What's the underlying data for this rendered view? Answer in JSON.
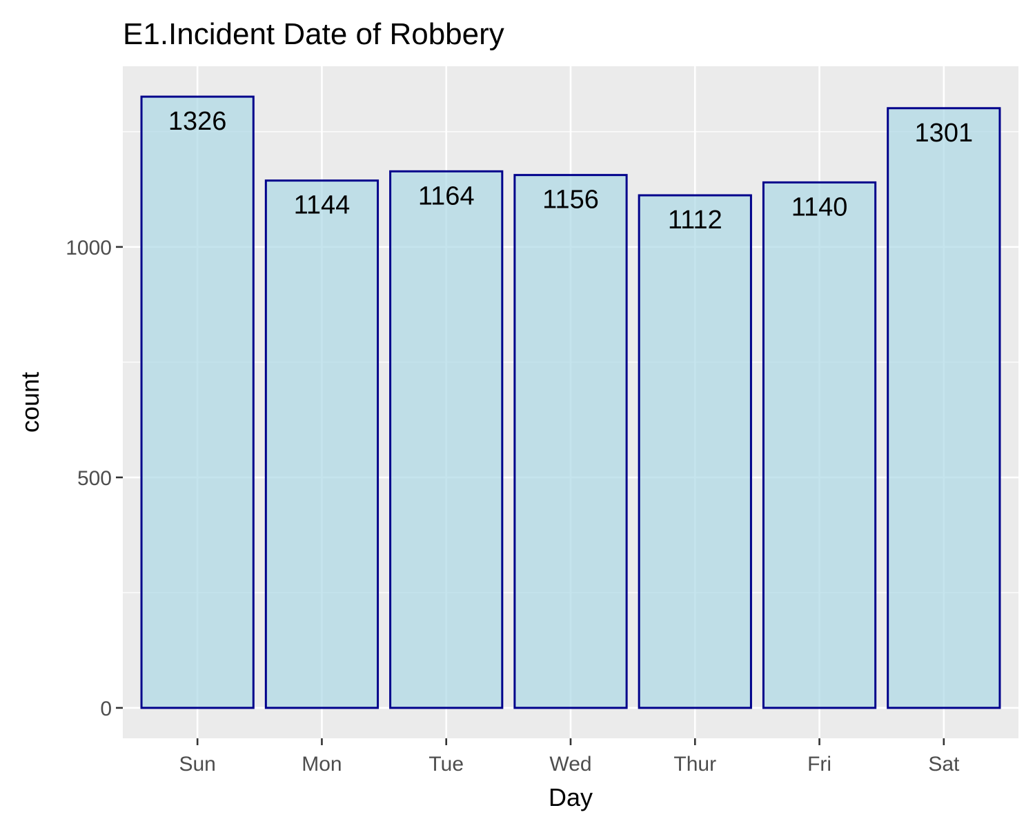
{
  "chart_data": {
    "type": "bar",
    "title": "E1.Incident Date of Robbery",
    "xlabel": "Day",
    "ylabel": "count",
    "categories": [
      "Sun",
      "Mon",
      "Tue",
      "Wed",
      "Thur",
      "Fri",
      "Sat"
    ],
    "values": [
      1326,
      1144,
      1164,
      1156,
      1112,
      1140,
      1301
    ],
    "data_labels": [
      "1326",
      "1144",
      "1164",
      "1156",
      "1112",
      "1140",
      "1301"
    ],
    "yticks": [
      0,
      500,
      1000
    ],
    "ytick_labels": [
      "0",
      "500",
      "1000"
    ],
    "ylim": [
      -66,
      1392
    ],
    "grid": true,
    "legend": "none",
    "colors": {
      "bar_fill": "#add8e6",
      "bar_stroke": "#00008b",
      "panel_bg": "#ebebeb",
      "grid_line": "#ffffff",
      "tick_text": "#4d4d4d",
      "text": "#000000"
    }
  }
}
